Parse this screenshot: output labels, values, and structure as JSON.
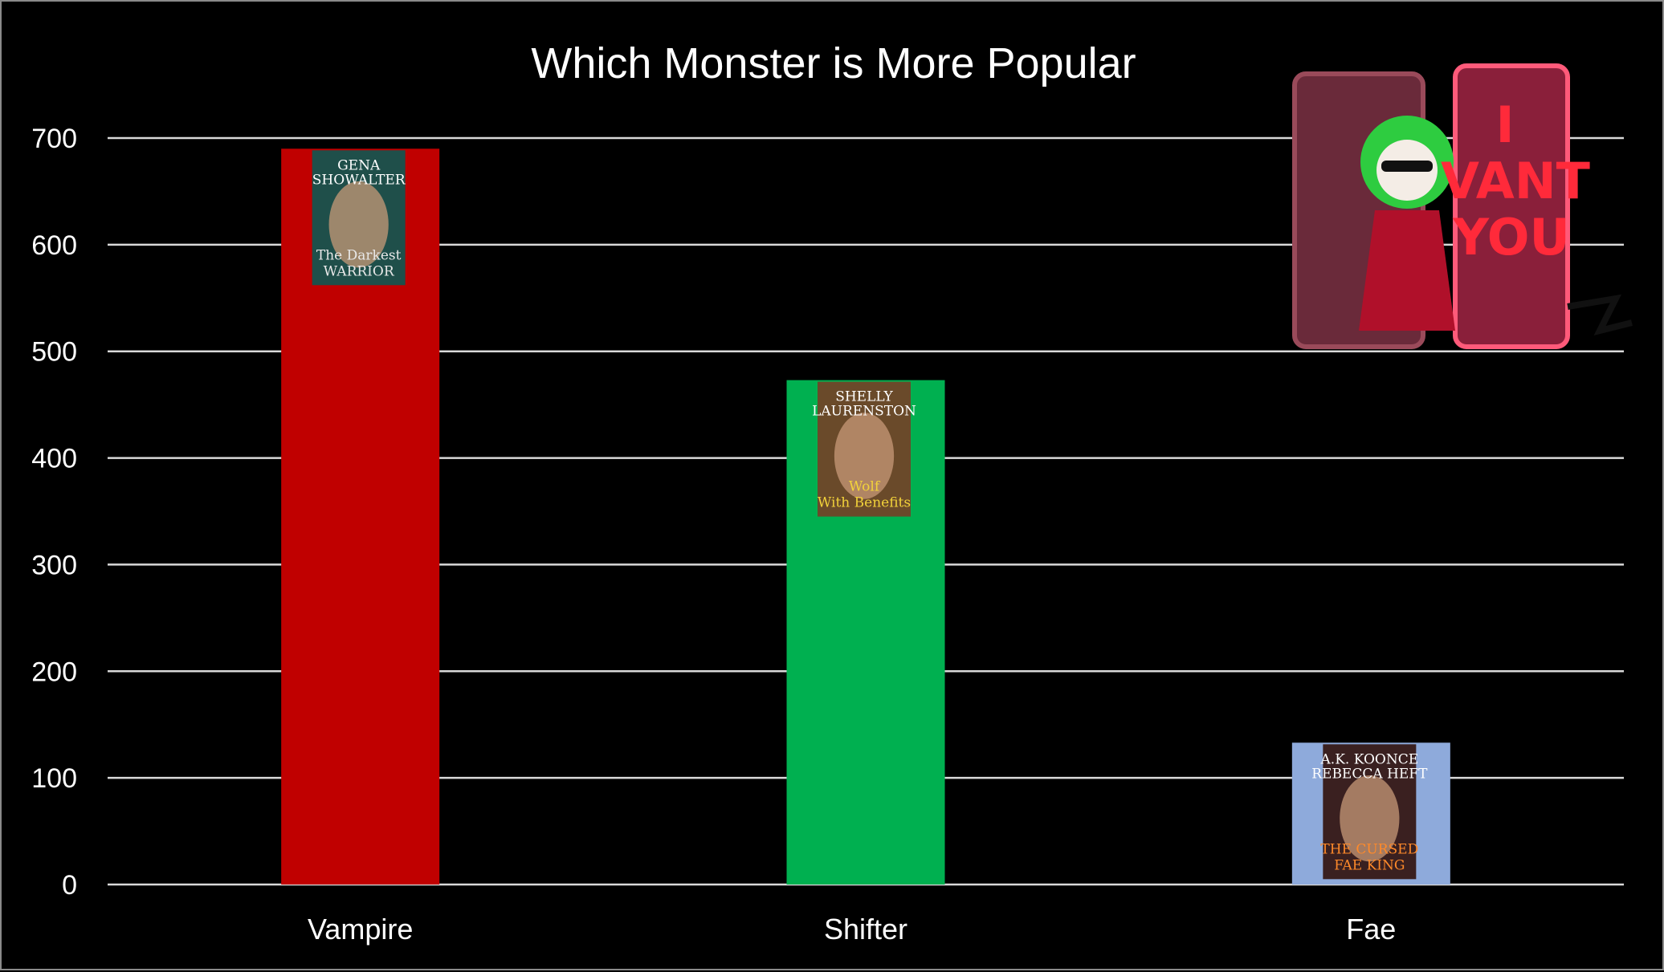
{
  "chart_data": {
    "type": "bar",
    "title": "Which Monster is More Popular",
    "categories": [
      "Vampire",
      "Shifter",
      "Fae"
    ],
    "values": [
      690,
      473,
      133
    ],
    "colors": [
      "#c00000",
      "#00b050",
      "#8eaadb"
    ],
    "ylim": [
      0,
      700
    ],
    "yticks": [
      0,
      100,
      200,
      300,
      400,
      500,
      600,
      700
    ],
    "grid": true,
    "legend": "none",
    "xlabel": "",
    "ylabel": ""
  },
  "covers": [
    {
      "icon": "book-cover-icon",
      "author_line1": "GENA",
      "author_line2": "SHOWALTER",
      "title_line1": "The Darkest",
      "title_line2": "WARRIOR",
      "bg": "#1f4f4a",
      "accent": "#e8e8e8"
    },
    {
      "icon": "book-cover-icon",
      "author_line1": "SHELLY",
      "author_line2": "LAURENSTON",
      "title_line1": "Wolf",
      "title_line2": "With Benefits",
      "bg": "#6a4a2a",
      "accent": "#f2d23a"
    },
    {
      "icon": "book-cover-icon",
      "author_line1": "A.K. KOONCE",
      "author_line2": "REBECCA HEFT",
      "title_line1": "THE CURSED",
      "title_line2": "FAE KING",
      "bg": "#3a2020",
      "accent": "#ff8a2a"
    }
  ],
  "sticker": {
    "icon": "vampire-coffin-sticker-icon",
    "line1": "I",
    "line2": "VANT",
    "line3": "YOU"
  }
}
